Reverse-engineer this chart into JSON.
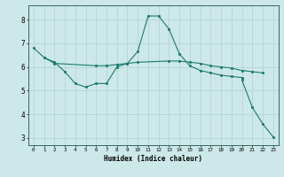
{
  "title": "",
  "xlabel": "Humidex (Indice chaleur)",
  "xlim": [
    -0.5,
    23.5
  ],
  "ylim": [
    2.7,
    8.6
  ],
  "yticks": [
    3,
    4,
    5,
    6,
    7,
    8
  ],
  "xticks": [
    0,
    1,
    2,
    3,
    4,
    5,
    6,
    7,
    8,
    9,
    10,
    11,
    12,
    13,
    14,
    15,
    16,
    17,
    18,
    19,
    20,
    21,
    22,
    23
  ],
  "background_color": "#cde8e8",
  "grid_color": "#b0d0d0",
  "line_color": "#1a7a6e",
  "figsize": [
    3.2,
    2.0
  ],
  "dpi": 100,
  "series": [
    {
      "x": [
        0,
        1,
        2,
        3,
        4,
        5,
        6,
        7,
        8,
        9,
        10,
        11,
        12,
        13,
        14,
        15,
        16,
        17,
        18,
        19,
        20
      ],
      "y": [
        6.8,
        6.4,
        6.2,
        5.8,
        5.3,
        5.15,
        5.3,
        5.3,
        6.0,
        6.15,
        6.65,
        8.15,
        8.15,
        7.6,
        6.55,
        6.05,
        5.85,
        5.75,
        5.65,
        5.6,
        5.55
      ]
    },
    {
      "x": [
        1,
        2,
        6,
        7,
        8,
        9,
        10,
        13,
        14,
        15,
        16,
        17,
        18,
        19,
        20,
        21,
        22
      ],
      "y": [
        6.4,
        6.15,
        6.05,
        6.05,
        6.1,
        6.15,
        6.2,
        6.25,
        6.25,
        6.2,
        6.15,
        6.05,
        6.0,
        5.95,
        5.85,
        5.8,
        5.75
      ]
    },
    {
      "x": [
        20,
        21,
        22,
        23
      ],
      "y": [
        5.45,
        4.3,
        3.6,
        3.05
      ]
    }
  ]
}
